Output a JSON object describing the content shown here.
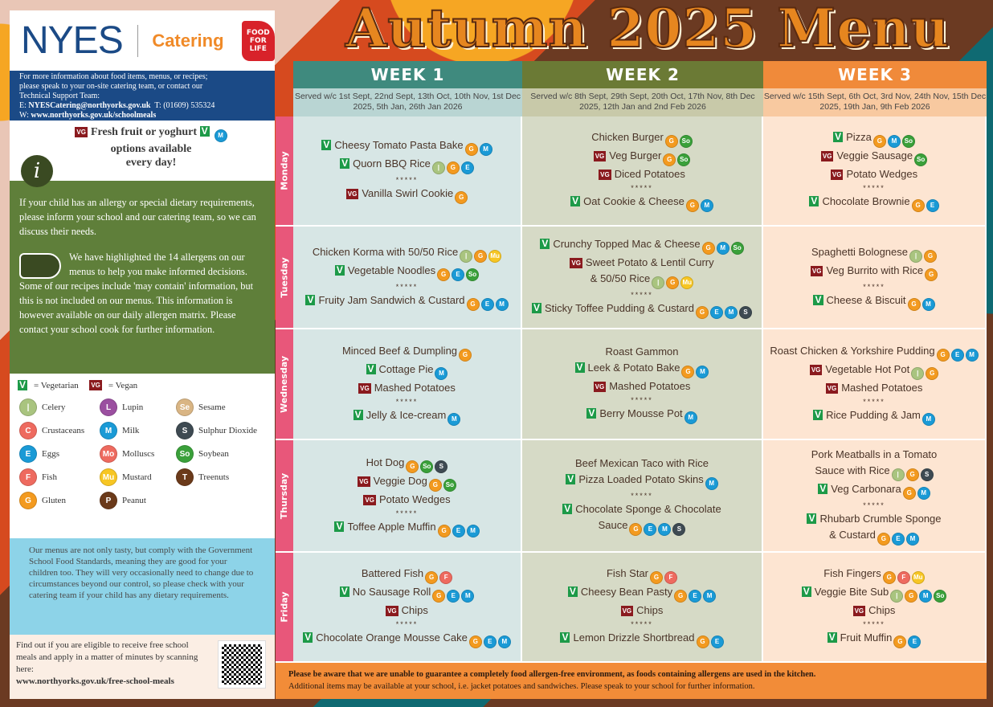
{
  "title": "Autumn 2025 Menu",
  "brand": {
    "name": "NYES",
    "division": "Catering",
    "partner_logo": "FOOD FOR LIFE Soil Association"
  },
  "contact": {
    "line1": "For more information about food items, menus, or recipes;",
    "line2": "please speak to your on-site catering team, or contact our",
    "line3": "Technical Support Team:",
    "email_label": "E: ",
    "email": "NYESCatering@northyorks.gov.uk",
    "phone": "T: (01609) 535324",
    "web_label": "W: ",
    "web": "www.northyorks.gov.uk/schoolmeals"
  },
  "fruit": {
    "tag": "VG",
    "line1": "Fresh fruit or yoghurt",
    "line2": "options available",
    "line3": "every day!",
    "tag2": "V"
  },
  "allergy_info": {
    "p1": "If your child has an allergy or special dietary requirements, please inform your school and our catering team, so we can discuss their needs.",
    "p2": "We have highlighted the 14 allergens on our menus to help you make informed decisions. Some of our recipes include 'may contain' information, but this is not included on our menus. This information is however available on our daily allergen matrix. Please contact your school cook for further information."
  },
  "legend": {
    "vegetarian": "= Vegetarian",
    "vegan": "= Vegan",
    "v": "V",
    "vg": "VG",
    "allergens": [
      {
        "key": "celery",
        "label": "Celery"
      },
      {
        "key": "lupin",
        "label": "Lupin"
      },
      {
        "key": "sesame",
        "label": "Sesame"
      },
      {
        "key": "crustaceans",
        "label": "Crustaceans"
      },
      {
        "key": "milk",
        "label": "Milk"
      },
      {
        "key": "sulphur",
        "label": "Sulphur Dioxide"
      },
      {
        "key": "eggs",
        "label": "Eggs"
      },
      {
        "key": "molluscs",
        "label": "Molluscs"
      },
      {
        "key": "soybean",
        "label": "Soybean"
      },
      {
        "key": "fish",
        "label": "Fish"
      },
      {
        "key": "mustard",
        "label": "Mustard"
      },
      {
        "key": "treenuts",
        "label": "Treenuts"
      },
      {
        "key": "gluten",
        "label": "Gluten"
      },
      {
        "key": "peanut",
        "label": "Peanut"
      }
    ]
  },
  "allergen_colors": {
    "celery": "#a9c47f",
    "crustaceans": "#ee6a5f",
    "eggs": "#1a9ad6",
    "fish": "#ee6a5f",
    "gluten": "#f39a1f",
    "lupin": "#9b4fa0",
    "milk": "#1a9ad6",
    "molluscs": "#ee6a5f",
    "mustard": "#f7c623",
    "peanut": "#6b3a1a",
    "sesame": "#d9b584",
    "sulphur": "#3e4a52",
    "soybean": "#3aa03a",
    "treenuts": "#6b3a1a"
  },
  "allergen_glyphs": {
    "celery": "|",
    "crustaceans": "C",
    "eggs": "E",
    "fish": "F",
    "gluten": "G",
    "lupin": "L",
    "milk": "M",
    "molluscs": "Mo",
    "mustard": "Mu",
    "peanut": "P",
    "sesame": "Se",
    "sulphur": "S",
    "soybean": "So",
    "treenuts": "T"
  },
  "standards": "Our menus are not only tasty, but comply with the Government School Food Standards, meaning they are good for your children too. They will very occasionally need to change due to circumstances beyond our control, so please check with your catering team if your child has any dietary requirements.",
  "free_meals": {
    "text": "Find out if you are eligible to receive free school meals and apply in a matter of minutes by scanning here:",
    "url": "www.northyorks.gov.uk/free-school-meals"
  },
  "days": [
    "Monday",
    "Tuesday",
    "Wednesday",
    "Thursday",
    "Friday"
  ],
  "weeks": [
    {
      "label": "WEEK 1",
      "served": "Served w/c 1st Sept, 22nd Sept, 13th Oct, 10th Nov, 1st Dec 2025, 5th Jan, 26th Jan 2026",
      "color": "#3f8a7e",
      "sub": "#b9d5d3",
      "body": "#d7e6e5",
      "days": [
        [
          {
            "t": "V",
            "n": "Cheesy Tomato Pasta Bake",
            "a": [
              "gluten",
              "milk"
            ]
          },
          {
            "t": "V",
            "n": "Quorn BBQ Rice",
            "a": [
              "celery",
              "gluten",
              "eggs"
            ]
          },
          {
            "s": 1
          },
          {
            "t": "VG",
            "n": "Vanilla Swirl Cookie",
            "a": [
              "gluten"
            ]
          }
        ],
        [
          {
            "n": "Chicken Korma with 50/50 Rice",
            "a": [
              "celery",
              "gluten",
              "mustard"
            ]
          },
          {
            "t": "V",
            "n": "Vegetable Noodles",
            "a": [
              "gluten",
              "eggs",
              "soybean"
            ]
          },
          {
            "s": 1
          },
          {
            "t": "V",
            "n": "Fruity Jam Sandwich & Custard",
            "a": [
              "gluten",
              "eggs",
              "milk"
            ]
          }
        ],
        [
          {
            "n": "Minced Beef & Dumpling",
            "a": [
              "gluten"
            ]
          },
          {
            "t": "V",
            "n": "Cottage Pie",
            "a": [
              "milk"
            ]
          },
          {
            "t": "VG",
            "n": "Mashed Potatoes",
            "a": []
          },
          {
            "s": 1
          },
          {
            "t": "V",
            "n": "Jelly & Ice-cream",
            "a": [
              "milk"
            ]
          }
        ],
        [
          {
            "n": "Hot Dog",
            "a": [
              "gluten",
              "soybean",
              "sulphur"
            ]
          },
          {
            "t": "VG",
            "n": "Veggie Dog",
            "a": [
              "gluten",
              "soybean"
            ]
          },
          {
            "t": "VG",
            "n": "Potato Wedges",
            "a": []
          },
          {
            "s": 1
          },
          {
            "t": "V",
            "n": "Toffee Apple Muffin",
            "a": [
              "gluten",
              "eggs",
              "milk"
            ]
          }
        ],
        [
          {
            "n": "Battered Fish",
            "a": [
              "gluten",
              "fish"
            ]
          },
          {
            "t": "V",
            "n": "No Sausage Roll",
            "a": [
              "gluten",
              "eggs",
              "milk"
            ]
          },
          {
            "t": "VG",
            "n": "Chips",
            "a": []
          },
          {
            "s": 1
          },
          {
            "t": "V",
            "n": "Chocolate Orange Mousse Cake",
            "a": [
              "gluten",
              "eggs",
              "milk"
            ]
          }
        ]
      ]
    },
    {
      "label": "WEEK 2",
      "served": "Served w/c 8th Sept, 29th Sept, 20th Oct, 17th Nov, 8th Dec 2025, 12th Jan and 2nd Feb 2026",
      "color": "#6b7a35",
      "sub": "#c8c9a9",
      "body": "#d6dac6",
      "days": [
        [
          {
            "n": "Chicken Burger",
            "a": [
              "gluten",
              "soybean"
            ]
          },
          {
            "t": "VG",
            "n": "Veg Burger",
            "a": [
              "gluten",
              "soybean"
            ]
          },
          {
            "t": "VG",
            "n": "Diced Potatoes",
            "a": []
          },
          {
            "s": 1
          },
          {
            "t": "V",
            "n": "Oat Cookie & Cheese",
            "a": [
              "gluten",
              "milk"
            ]
          }
        ],
        [
          {
            "t": "V",
            "n": "Crunchy Topped Mac & Cheese",
            "a": [
              "gluten",
              "milk",
              "soybean"
            ]
          },
          {
            "t": "VG",
            "n": "Sweet Potato & Lentil Curry",
            "a": []
          },
          {
            "n": "& 50/50 Rice",
            "a": [
              "celery",
              "gluten",
              "mustard"
            ]
          },
          {
            "s": 1
          },
          {
            "t": "V",
            "n": "Sticky Toffee Pudding & Custard",
            "a": [
              "gluten",
              "eggs",
              "milk",
              "sulphur"
            ]
          }
        ],
        [
          {
            "n": "Roast Gammon",
            "a": []
          },
          {
            "t": "V",
            "n": "Leek & Potato Bake",
            "a": [
              "gluten",
              "milk"
            ]
          },
          {
            "t": "VG",
            "n": "Mashed Potatoes",
            "a": []
          },
          {
            "s": 1
          },
          {
            "t": "V",
            "n": "Berry Mousse Pot",
            "a": [
              "milk"
            ]
          }
        ],
        [
          {
            "n": "Beef Mexican Taco with Rice",
            "a": []
          },
          {
            "t": "V",
            "n": "Pizza Loaded Potato Skins",
            "a": [
              "milk"
            ]
          },
          {
            "s": 1
          },
          {
            "t": "V",
            "n": "Chocolate Sponge & Chocolate",
            "a": []
          },
          {
            "n": "Sauce",
            "a": [
              "gluten",
              "eggs",
              "milk",
              "sulphur"
            ]
          }
        ],
        [
          {
            "n": "Fish Star",
            "a": [
              "gluten",
              "fish"
            ]
          },
          {
            "t": "V",
            "n": "Cheesy Bean Pasty",
            "a": [
              "gluten",
              "eggs",
              "milk"
            ]
          },
          {
            "t": "VG",
            "n": "Chips",
            "a": []
          },
          {
            "s": 1
          },
          {
            "t": "V",
            "n": "Lemon Drizzle Shortbread",
            "a": [
              "gluten",
              "eggs"
            ]
          }
        ]
      ]
    },
    {
      "label": "WEEK 3",
      "served": "Served w/c 15th Sept, 6th Oct, 3rd Nov, 24th Nov, 15th Dec 2025, 19th Jan, 9th Feb 2026",
      "color": "#f08a3a",
      "sub": "#f8c9a0",
      "body": "#fde5d2",
      "days": [
        [
          {
            "t": "V",
            "n": "Pizza",
            "a": [
              "gluten",
              "milk",
              "soybean"
            ]
          },
          {
            "t": "VG",
            "n": "Veggie Sausage",
            "a": [
              "soybean"
            ]
          },
          {
            "t": "VG",
            "n": "Potato Wedges",
            "a": []
          },
          {
            "s": 1
          },
          {
            "t": "V",
            "n": "Chocolate Brownie",
            "a": [
              "gluten",
              "eggs"
            ]
          }
        ],
        [
          {
            "n": "Spaghetti Bolognese",
            "a": [
              "celery",
              "gluten"
            ]
          },
          {
            "t": "VG",
            "n": "Veg Burrito with Rice",
            "a": [
              "gluten"
            ]
          },
          {
            "s": 1
          },
          {
            "t": "V",
            "n": "Cheese & Biscuit",
            "a": [
              "gluten",
              "milk"
            ]
          }
        ],
        [
          {
            "n": "Roast Chicken & Yorkshire Pudding",
            "a": [
              "gluten",
              "eggs",
              "milk"
            ]
          },
          {
            "t": "VG",
            "n": "Vegetable Hot Pot",
            "a": [
              "celery",
              "gluten"
            ]
          },
          {
            "t": "VG",
            "n": "Mashed Potatoes",
            "a": []
          },
          {
            "s": 1
          },
          {
            "t": "V",
            "n": "Rice Pudding & Jam",
            "a": [
              "milk"
            ]
          }
        ],
        [
          {
            "n": "Pork Meatballs in a Tomato",
            "a": []
          },
          {
            "n": "Sauce with Rice",
            "a": [
              "celery",
              "gluten",
              "sulphur"
            ]
          },
          {
            "t": "V",
            "n": "Veg Carbonara",
            "a": [
              "gluten",
              "milk"
            ]
          },
          {
            "s": 1
          },
          {
            "t": "V",
            "n": "Rhubarb Crumble Sponge",
            "a": []
          },
          {
            "n": "& Custard",
            "a": [
              "gluten",
              "eggs",
              "milk"
            ]
          }
        ],
        [
          {
            "n": "Fish Fingers",
            "a": [
              "gluten",
              "fish",
              "mustard"
            ]
          },
          {
            "t": "V",
            "n": "Veggie Bite Sub",
            "a": [
              "celery",
              "gluten",
              "milk",
              "soybean"
            ]
          },
          {
            "t": "VG",
            "n": "Chips",
            "a": []
          },
          {
            "s": 1
          },
          {
            "t": "V",
            "n": "Fruit Muffin",
            "a": [
              "gluten",
              "eggs"
            ]
          }
        ]
      ]
    }
  ],
  "separator": "*****",
  "footer": {
    "line1": "Please be aware that we are unable to guarantee a completely food allergen-free environment, as foods containing allergens are used in the kitchen.",
    "line2": "Additional items may be available at your school, i.e. jacket potatoes and sandwiches. Please speak to your school for further information."
  }
}
